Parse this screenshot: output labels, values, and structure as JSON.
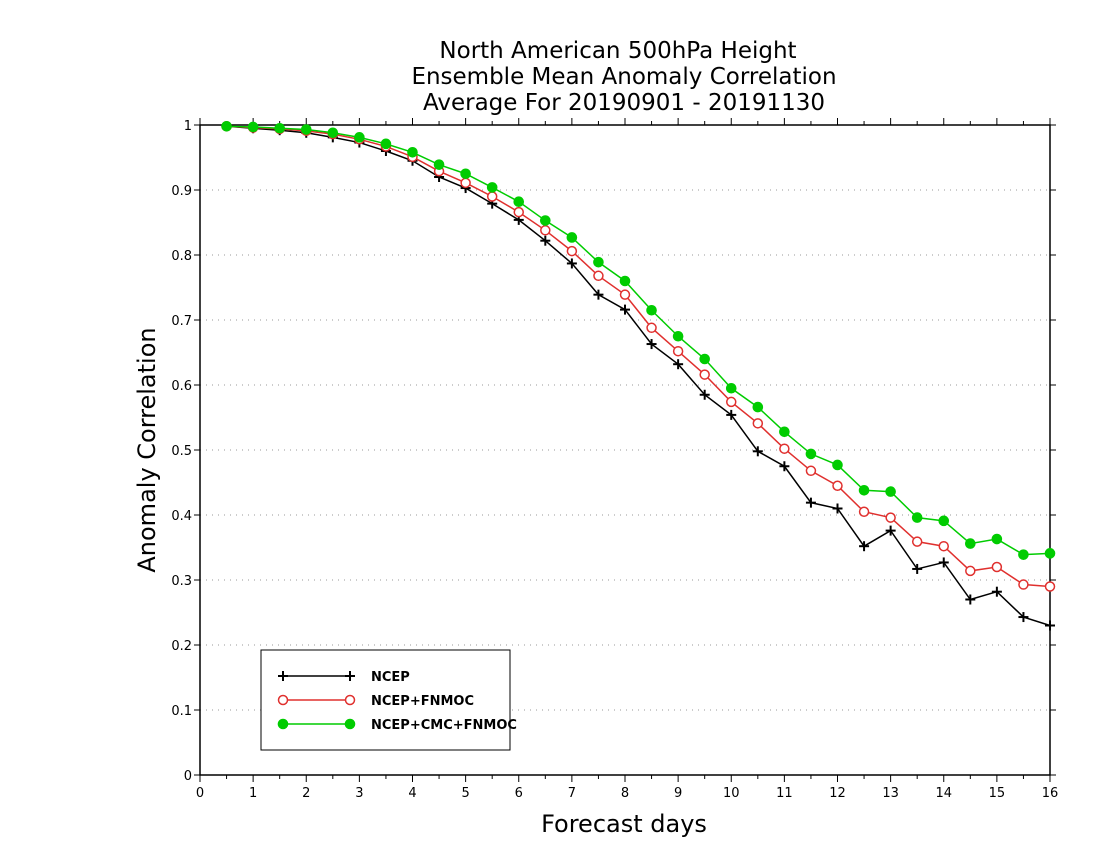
{
  "chart_data": {
    "type": "line",
    "title": [
      "North American 500hPa Height",
      "Ensemble Mean Anomaly Correlation",
      "Average For 20190901 - 20191130"
    ],
    "xlabel": "Forecast days",
    "ylabel": "Anomaly Correlation",
    "xlim": [
      0,
      16
    ],
    "ylim": [
      0,
      1
    ],
    "xticks": [
      "0",
      "1",
      "2",
      "3",
      "4",
      "5",
      "6",
      "7",
      "8",
      "9",
      "10",
      "11",
      "12",
      "13",
      "14",
      "15",
      "16"
    ],
    "yticks": [
      "0",
      "0.1",
      "0.2",
      "0.3",
      "0.4",
      "0.5",
      "0.6",
      "0.7",
      "0.8",
      "0.9",
      "1"
    ],
    "grid": "horizontal dotted",
    "legend_position": "bottom-left",
    "x": [
      0.5,
      1,
      1.5,
      2,
      2.5,
      3,
      3.5,
      4,
      4.5,
      5,
      5.5,
      6,
      6.5,
      7,
      7.5,
      8,
      8.5,
      9,
      9.5,
      10,
      10.5,
      11,
      11.5,
      12,
      12.5,
      13,
      13.5,
      14,
      14.5,
      15,
      15.5,
      16
    ],
    "series": [
      {
        "name": "NCEP",
        "color": "#000000",
        "marker": "plus",
        "values": [
          0.998,
          0.995,
          0.992,
          0.988,
          0.981,
          0.973,
          0.96,
          0.945,
          0.92,
          0.903,
          0.879,
          0.854,
          0.822,
          0.787,
          0.739,
          0.716,
          0.663,
          0.632,
          0.585,
          0.554,
          0.498,
          0.475,
          0.419,
          0.41,
          0.352,
          0.376,
          0.317,
          0.327,
          0.27,
          0.282,
          0.243,
          0.23
        ]
      },
      {
        "name": "NCEP+FNMOC",
        "color": "#e0302e",
        "marker": "open-circle",
        "values": [
          0.998,
          0.996,
          0.994,
          0.991,
          0.986,
          0.978,
          0.967,
          0.951,
          0.929,
          0.911,
          0.89,
          0.866,
          0.838,
          0.806,
          0.768,
          0.739,
          0.688,
          0.652,
          0.616,
          0.574,
          0.541,
          0.502,
          0.468,
          0.445,
          0.405,
          0.396,
          0.359,
          0.352,
          0.314,
          0.32,
          0.293,
          0.29
        ]
      },
      {
        "name": "NCEP+CMC+FNMOC",
        "color": "#00cc00",
        "marker": "filled-circle",
        "values": [
          0.998,
          0.997,
          0.995,
          0.993,
          0.988,
          0.981,
          0.971,
          0.958,
          0.939,
          0.925,
          0.904,
          0.882,
          0.853,
          0.827,
          0.789,
          0.76,
          0.715,
          0.675,
          0.64,
          0.595,
          0.566,
          0.528,
          0.494,
          0.477,
          0.438,
          0.436,
          0.396,
          0.391,
          0.356,
          0.363,
          0.339,
          0.341
        ]
      }
    ]
  }
}
